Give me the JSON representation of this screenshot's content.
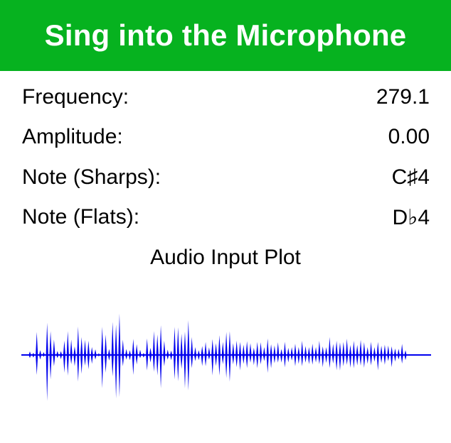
{
  "header": {
    "title": "Sing into the Microphone",
    "background_color": "#06b21f",
    "text_color": "#ffffff"
  },
  "readouts": {
    "frequency": {
      "label": "Frequency:",
      "value": "279.1"
    },
    "amplitude": {
      "label": "Amplitude:",
      "value": "0.00"
    },
    "note_sharps": {
      "label": "Note (Sharps):",
      "value": "C♯4"
    },
    "note_flats": {
      "label": "Note (Flats):",
      "value": "D♭4"
    }
  },
  "plot": {
    "title": "Audio Input Plot",
    "color": "#0000ee",
    "waveform_amplitudes": [
      0.1,
      0.05,
      0.45,
      0.12,
      0.06,
      0.9,
      0.55,
      0.3,
      0.1,
      0.08,
      0.4,
      0.55,
      0.3,
      0.22,
      0.6,
      0.5,
      0.35,
      0.28,
      0.2,
      0.12,
      0.05,
      0.65,
      0.4,
      0.15,
      0.7,
      0.85,
      0.95,
      0.3,
      0.15,
      0.1,
      0.45,
      0.25,
      0.1,
      0.05,
      0.35,
      0.2,
      0.55,
      0.4,
      0.75,
      0.3,
      0.15,
      0.1,
      0.55,
      0.7,
      0.45,
      0.65,
      0.8,
      0.35,
      0.2,
      0.1,
      0.25,
      0.3,
      0.15,
      0.4,
      0.25,
      0.55,
      0.3,
      0.45,
      0.6,
      0.25,
      0.4,
      0.3,
      0.2,
      0.35,
      0.25,
      0.2,
      0.3,
      0.25,
      0.2,
      0.35,
      0.3,
      0.22,
      0.25,
      0.15,
      0.28,
      0.2,
      0.18,
      0.22,
      0.2,
      0.3,
      0.25,
      0.18,
      0.22,
      0.2,
      0.3,
      0.24,
      0.18,
      0.35,
      0.28,
      0.3,
      0.35,
      0.3,
      0.32,
      0.25,
      0.3,
      0.28,
      0.35,
      0.25,
      0.2,
      0.28,
      0.22,
      0.3,
      0.18,
      0.26,
      0.2,
      0.24,
      0.15,
      0.12,
      0.28,
      0.1
    ]
  }
}
